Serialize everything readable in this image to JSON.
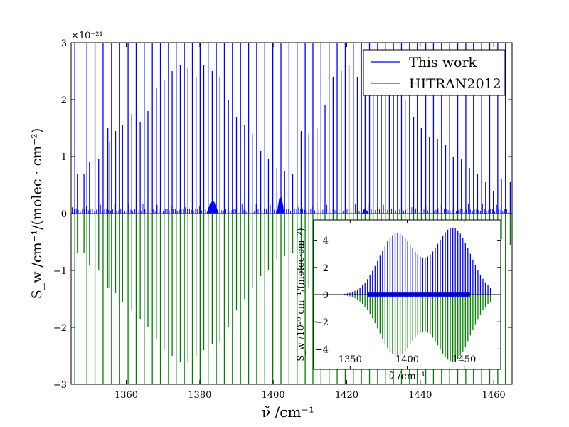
{
  "chart_data": [
    {
      "type": "line",
      "xlabel": "ν̃ /cm⁻¹",
      "ylabel": "S_w /cm⁻¹/(molec · cm⁻²)",
      "y_multiplier": "×10⁻²¹",
      "xlim": [
        1345,
        1465
      ],
      "ylim": [
        -3,
        3
      ],
      "xticks": [
        1360,
        1380,
        1400,
        1420,
        1440,
        1460
      ],
      "yticks": [
        -3,
        -2,
        -1,
        0,
        1,
        2,
        3
      ],
      "legend": {
        "placement": "top-right",
        "entries": [
          "This work",
          "HITRAN2012"
        ]
      },
      "colors": {
        "this_work": "#0000ff",
        "hitran": "#008000"
      },
      "series": [
        {
          "name": "This work",
          "note_sign": "positive",
          "lines": [
            [
              1346.0,
              4.0
            ],
            [
              1346.7,
              0.7
            ],
            [
              1348.5,
              0.7
            ],
            [
              1349.3,
              4.0
            ],
            [
              1350.0,
              0.9
            ],
            [
              1351.5,
              4.0
            ],
            [
              1352.5,
              0.95
            ],
            [
              1353.7,
              4.0
            ],
            [
              1355.0,
              1.5
            ],
            [
              1355.5,
              1.25
            ],
            [
              1356.0,
              4.0
            ],
            [
              1357.1,
              1.45
            ],
            [
              1358.2,
              4.0
            ],
            [
              1359.0,
              1.55
            ],
            [
              1360.5,
              4.0
            ],
            [
              1361.5,
              1.75
            ],
            [
              1362.7,
              4.0
            ],
            [
              1363.8,
              1.6
            ],
            [
              1364.9,
              4.0
            ],
            [
              1365.9,
              1.8
            ],
            [
              1367.1,
              4.0
            ],
            [
              1368.2,
              2.2
            ],
            [
              1369.3,
              4.0
            ],
            [
              1370.3,
              2.35
            ],
            [
              1371.5,
              4.0
            ],
            [
              1372.5,
              2.5
            ],
            [
              1373.6,
              4.0
            ],
            [
              1374.7,
              2.6
            ],
            [
              1375.8,
              4.0
            ],
            [
              1376.8,
              2.55
            ],
            [
              1378.0,
              4.0
            ],
            [
              1379.0,
              2.4
            ],
            [
              1380.1,
              4.0
            ],
            [
              1381.1,
              2.6
            ],
            [
              1382.3,
              4.0
            ],
            [
              1383.4,
              2.5
            ],
            [
              1384.5,
              4.0
            ],
            [
              1385.5,
              2.4
            ],
            [
              1386.7,
              4.0
            ],
            [
              1387.8,
              2.0
            ],
            [
              1388.9,
              4.0
            ],
            [
              1390.0,
              1.7
            ],
            [
              1391.1,
              4.0
            ],
            [
              1392.2,
              1.55
            ],
            [
              1393.3,
              4.0
            ],
            [
              1394.3,
              1.4
            ],
            [
              1395.5,
              4.0
            ],
            [
              1396.6,
              1.1
            ],
            [
              1397.7,
              4.0
            ],
            [
              1398.7,
              0.95
            ],
            [
              1399.9,
              4.0
            ],
            [
              1401.0,
              0.8
            ],
            [
              1402.1,
              4.0
            ],
            [
              1403.1,
              0.75
            ],
            [
              1404.3,
              4.0
            ],
            [
              1405.3,
              0.7
            ],
            [
              1406.5,
              4.0
            ],
            [
              1407.6,
              1.45
            ],
            [
              1408.7,
              4.0
            ],
            [
              1409.7,
              1.4
            ],
            [
              1410.8,
              4.0
            ],
            [
              1411.9,
              1.5
            ],
            [
              1413.0,
              4.0
            ],
            [
              1414.1,
              1.9
            ],
            [
              1415.2,
              4.0
            ],
            [
              1416.3,
              2.4
            ],
            [
              1417.4,
              4.0
            ],
            [
              1418.5,
              2.5
            ],
            [
              1419.6,
              4.0
            ],
            [
              1420.6,
              2.6
            ],
            [
              1421.8,
              4.0
            ],
            [
              1422.9,
              2.4
            ],
            [
              1424.0,
              4.0
            ],
            [
              1425.0,
              2.6
            ],
            [
              1426.2,
              4.0
            ],
            [
              1427.2,
              2.5
            ],
            [
              1428.4,
              4.0
            ],
            [
              1429.4,
              2.4
            ],
            [
              1430.5,
              4.0
            ],
            [
              1431.6,
              2.3
            ],
            [
              1432.7,
              4.0
            ],
            [
              1433.8,
              2.25
            ],
            [
              1434.9,
              4.0
            ],
            [
              1435.9,
              2.0
            ],
            [
              1437.1,
              4.0
            ],
            [
              1438.2,
              1.7
            ],
            [
              1439.2,
              4.0
            ],
            [
              1440.3,
              1.5
            ],
            [
              1441.5,
              4.0
            ],
            [
              1442.5,
              1.35
            ],
            [
              1443.6,
              4.0
            ],
            [
              1444.7,
              1.3
            ],
            [
              1445.8,
              4.0
            ],
            [
              1446.9,
              1.2
            ],
            [
              1448.0,
              4.0
            ],
            [
              1449.0,
              1.0
            ],
            [
              1450.2,
              4.0
            ],
            [
              1451.2,
              0.95
            ],
            [
              1452.4,
              4.0
            ],
            [
              1453.4,
              0.8
            ],
            [
              1454.5,
              4.0
            ],
            [
              1455.6,
              0.7
            ],
            [
              1456.7,
              4.0
            ],
            [
              1457.8,
              0.55
            ],
            [
              1458.9,
              4.0
            ],
            [
              1459.9,
              0.4
            ],
            [
              1461.1,
              4.0
            ],
            [
              1462.1,
              0.6
            ],
            [
              1463.2,
              4.0
            ],
            [
              1464.5,
              0.55
            ]
          ]
        },
        {
          "name": "HITRAN2012",
          "note_sign": "negative",
          "lines": [
            [
              1346.0,
              -4.0
            ],
            [
              1346.7,
              -0.7
            ],
            [
              1348.5,
              -0.7
            ],
            [
              1349.3,
              -4.0
            ],
            [
              1350.0,
              -0.9
            ],
            [
              1351.5,
              -4.0
            ],
            [
              1352.5,
              -1.0
            ],
            [
              1353.7,
              -4.0
            ],
            [
              1355.0,
              -1.3
            ],
            [
              1355.5,
              -1.3
            ],
            [
              1356.0,
              -4.0
            ],
            [
              1357.1,
              -1.4
            ],
            [
              1358.2,
              -4.0
            ],
            [
              1359.0,
              -1.55
            ],
            [
              1360.5,
              -4.0
            ],
            [
              1361.5,
              -1.7
            ],
            [
              1362.7,
              -4.0
            ],
            [
              1363.8,
              -1.85
            ],
            [
              1364.9,
              -4.0
            ],
            [
              1365.9,
              -2.0
            ],
            [
              1367.1,
              -4.0
            ],
            [
              1368.2,
              -2.2
            ],
            [
              1369.3,
              -4.0
            ],
            [
              1370.3,
              -2.4
            ],
            [
              1371.5,
              -4.0
            ],
            [
              1372.5,
              -2.5
            ],
            [
              1373.6,
              -4.0
            ],
            [
              1374.7,
              -2.6
            ],
            [
              1375.8,
              -4.0
            ],
            [
              1376.8,
              -2.6
            ],
            [
              1378.0,
              -4.0
            ],
            [
              1379.0,
              -2.5
            ],
            [
              1380.1,
              -4.0
            ],
            [
              1381.1,
              -2.4
            ],
            [
              1382.3,
              -4.0
            ],
            [
              1383.4,
              -2.3
            ],
            [
              1384.5,
              -4.0
            ],
            [
              1385.5,
              -2.25
            ],
            [
              1386.7,
              -4.0
            ],
            [
              1387.8,
              -2.0
            ],
            [
              1388.9,
              -4.0
            ],
            [
              1390.0,
              -1.7
            ],
            [
              1391.1,
              -4.0
            ],
            [
              1392.2,
              -1.5
            ],
            [
              1393.3,
              -4.0
            ],
            [
              1394.3,
              -1.3
            ],
            [
              1395.5,
              -4.0
            ],
            [
              1396.6,
              -1.1
            ],
            [
              1397.7,
              -4.0
            ],
            [
              1398.7,
              -1.0
            ],
            [
              1399.9,
              -4.0
            ],
            [
              1401.0,
              -0.8
            ],
            [
              1402.1,
              -4.0
            ],
            [
              1403.1,
              -0.75
            ],
            [
              1404.3,
              -4.0
            ],
            [
              1405.3,
              -0.7
            ],
            [
              1406.5,
              -4.0
            ],
            [
              1407.6,
              -1.1
            ],
            [
              1408.7,
              -4.0
            ],
            [
              1409.7,
              -1.3
            ],
            [
              1410.8,
              -4.0
            ],
            [
              1411.9,
              -1.5
            ],
            [
              1413.0,
              -4.0
            ],
            [
              1414.1,
              -1.9
            ],
            [
              1415.2,
              -4.0
            ],
            [
              1416.3,
              -2.1
            ],
            [
              1417.4,
              -4.0
            ],
            [
              1418.5,
              -2.3
            ],
            [
              1419.6,
              -4.0
            ],
            [
              1420.6,
              -2.45
            ],
            [
              1421.8,
              -4.0
            ],
            [
              1422.9,
              -2.6
            ],
            [
              1424.0,
              -4.0
            ],
            [
              1425.0,
              -2.55
            ],
            [
              1426.2,
              -4.0
            ],
            [
              1427.2,
              -2.5
            ],
            [
              1428.4,
              -4.0
            ],
            [
              1429.4,
              -2.35
            ],
            [
              1430.5,
              -4.0
            ],
            [
              1431.6,
              -2.2
            ],
            [
              1432.7,
              -4.0
            ],
            [
              1433.8,
              -2.0
            ],
            [
              1434.9,
              -4.0
            ],
            [
              1435.9,
              -1.8
            ],
            [
              1437.1,
              -4.0
            ],
            [
              1438.2,
              -1.6
            ],
            [
              1439.2,
              -4.0
            ],
            [
              1440.3,
              -1.45
            ],
            [
              1441.5,
              -4.0
            ],
            [
              1442.5,
              -1.3
            ],
            [
              1443.6,
              -4.0
            ],
            [
              1444.7,
              -1.2
            ],
            [
              1445.8,
              -4.0
            ],
            [
              1446.9,
              -1.05
            ],
            [
              1448.0,
              -4.0
            ],
            [
              1449.0,
              -0.95
            ],
            [
              1450.2,
              -4.0
            ],
            [
              1451.2,
              -0.85
            ],
            [
              1452.4,
              -4.0
            ],
            [
              1453.4,
              -0.75
            ],
            [
              1454.5,
              -4.0
            ],
            [
              1455.6,
              -0.65
            ],
            [
              1456.7,
              -4.0
            ],
            [
              1457.8,
              -0.55
            ],
            [
              1458.9,
              -4.0
            ],
            [
              1459.9,
              -0.5
            ],
            [
              1461.1,
              -4.0
            ],
            [
              1462.1,
              -0.45
            ],
            [
              1463.2,
              -4.0
            ],
            [
              1464.5,
              -0.55
            ]
          ]
        }
      ],
      "qbranch_clusters": [
        {
          "center": 1383.5,
          "width": 3.0,
          "height": 0.22
        },
        {
          "center": 1402.0,
          "width": 1.8,
          "height": 0.3
        },
        {
          "center": 1425.0,
          "width": 1.5,
          "height": 0.08
        }
      ]
    },
    {
      "type": "line",
      "inset": true,
      "xlabel": "ν̃ /cm⁻¹",
      "ylabel": "S_w /10²⁰ cm⁻¹/(molec·cm⁻²)",
      "xlim": [
        1318,
        1482
      ],
      "ylim": [
        -5.5,
        5.5
      ],
      "xticks": [
        1350,
        1400,
        1450
      ],
      "yticks": [
        -4,
        -2,
        0,
        2,
        4
      ],
      "band1": {
        "center": 1391,
        "amplitude": 4.5,
        "width": 22
      },
      "band2": {
        "center": 1440,
        "amplitude": 4.9,
        "width": 22
      },
      "range": [
        1330,
        1475
      ],
      "spacing": 2.2
    }
  ]
}
